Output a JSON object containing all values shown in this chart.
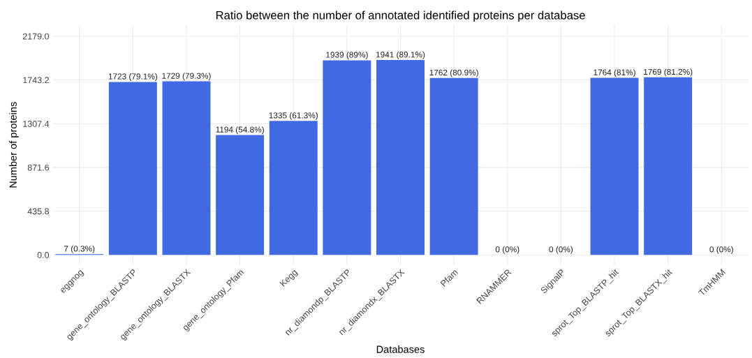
{
  "chart_data": {
    "type": "bar",
    "title": "Ratio between the number of annotated identified proteins per database",
    "xlabel": "Databases",
    "ylabel": "Number of proteins",
    "categories": [
      "eggnog",
      "gene_ontology_BLASTP",
      "gene_ontology_BLASTX",
      "gene_ontology_Pfam",
      "Kegg",
      "nr_diamondp_BLASTP",
      "nr_diamondx_BLASTX",
      "Pfam",
      "RNAMMER",
      "SignalP",
      "sprot_Top_BLASTP_hit",
      "sprot_Top_BLASTX_hit",
      "TmHMM"
    ],
    "values": [
      7,
      1723,
      1729,
      1194,
      1335,
      1939,
      1941,
      1762,
      0,
      0,
      1764,
      1769,
      0
    ],
    "value_labels": [
      "7 (0.3%)",
      "1723 (79.1%)",
      "1729 (79.3%)",
      "1194 (54.8%)",
      "1335 (61.3%)",
      "1939 (89%)",
      "1941 (89.1%)",
      "1762 (80.9%)",
      "0 (0%)",
      "0 (0%)",
      "1764 (81%)",
      "1769 (81.2%)",
      "0 (0%)"
    ],
    "color": "#4169e1",
    "ylim": [
      -100,
      2290
    ],
    "yticks": [
      {
        "value": 0,
        "label": "0.0"
      },
      435.8,
      871.6,
      1307.4,
      1743.2,
      {
        "value": 2179,
        "label": "2179.0"
      }
    ],
    "grid": true
  }
}
